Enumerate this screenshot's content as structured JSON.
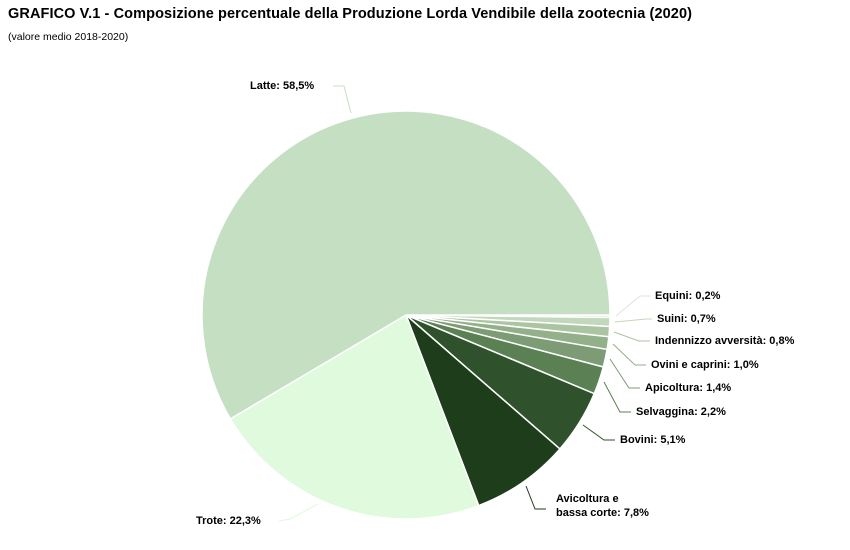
{
  "chart_data": {
    "type": "pie",
    "title": "GRAFICO V.1 - Composizione percentuale della Produzione Lorda Vendibile della zootecnia (2020)",
    "subtitle": "(valore medio 2018-2020)",
    "unit": "%",
    "layout_hints": {
      "start": "east",
      "direction": "clockwise",
      "labels": "outside-with-leader-lines",
      "legend": "none",
      "slice_border_color": "#ffffff"
    },
    "slices": [
      {
        "name": "Equini",
        "value": 0.2,
        "label": "Equini: 0,2%",
        "color": "#d9e9d5"
      },
      {
        "name": "Suini",
        "value": 0.7,
        "label": "Suini: 0,7%",
        "color": "#c3d7bc"
      },
      {
        "name": "Indennizzo avversità",
        "value": 0.8,
        "label": "Indennizzo avversità: 0,8%",
        "color": "#abc5a3"
      },
      {
        "name": "Ovini e caprini",
        "value": 1.0,
        "label": "Ovini e caprini: 1,0%",
        "color": "#93b08a"
      },
      {
        "name": "Apicoltura",
        "value": 1.4,
        "label": "Apicoltura: 1,4%",
        "color": "#7d9b74"
      },
      {
        "name": "Selvaggina",
        "value": 2.2,
        "label": "Selvaggina: 2,2%",
        "color": "#5a8054"
      },
      {
        "name": "Bovini",
        "value": 5.1,
        "label": "Bovini: 5,1%",
        "color": "#2f512c"
      },
      {
        "name": "Avicoltura e bassa corte",
        "value": 7.8,
        "label": "Avicoltura e\nbassa corte: 7,8%",
        "color": "#1d3d1b"
      },
      {
        "name": "Trote",
        "value": 22.3,
        "label": "Trote: 22,3%",
        "color": "#dffadd"
      },
      {
        "name": "Latte",
        "value": 58.5,
        "label": "Latte: 58,5%",
        "color": "#c5dfc3"
      }
    ]
  }
}
